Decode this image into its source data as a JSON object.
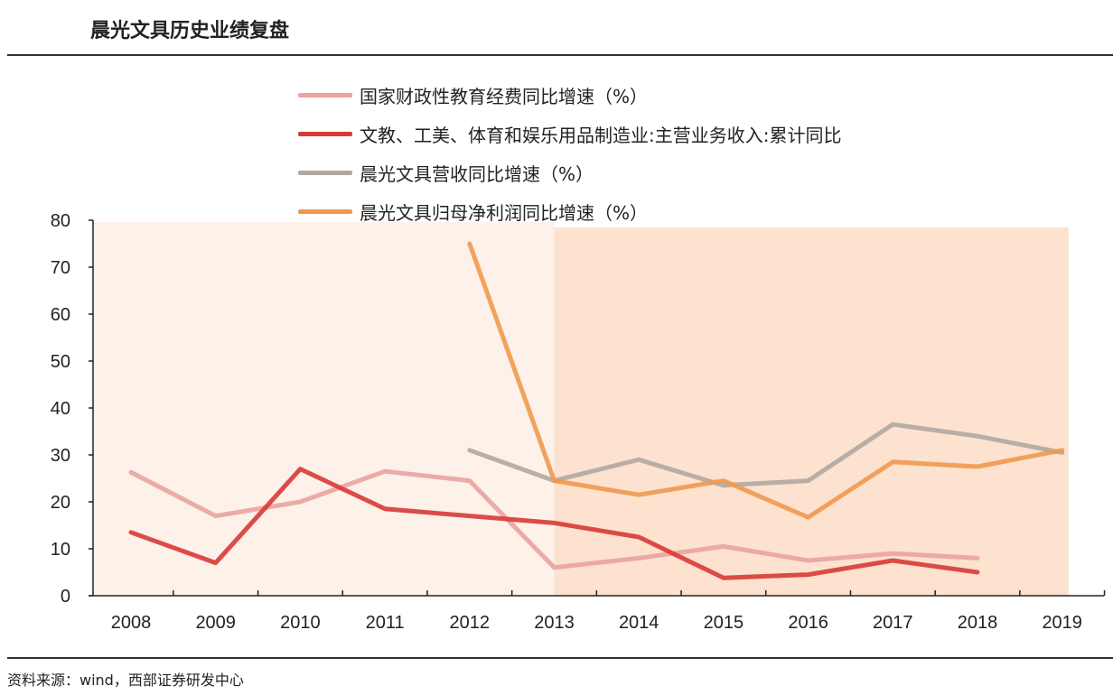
{
  "header": {
    "title": "晨光文具历史业绩复盘"
  },
  "footer": {
    "source": "资料来源：wind，西部证券研发中心"
  },
  "chart_data": {
    "type": "line",
    "title": "",
    "xlabel": "",
    "ylabel": "",
    "categories": [
      "2008",
      "2009",
      "2010",
      "2011",
      "2012",
      "2013",
      "2014",
      "2015",
      "2016",
      "2017",
      "2018",
      "2019"
    ],
    "ylim": [
      0,
      80
    ],
    "yticks": [
      "0",
      "10",
      "20",
      "30",
      "40",
      "50",
      "60",
      "70",
      "80"
    ],
    "grid": false,
    "legend_position": "top",
    "shaded_regions": [
      {
        "from": "2008",
        "to": "2013",
        "color": "#fdf1ea"
      },
      {
        "from": "2013",
        "to": "2019",
        "color": "#fce2cf"
      }
    ],
    "series": [
      {
        "name": "国家财政性教育经费同比增速（%）",
        "color": "#eaa3a0",
        "values": [
          26.3,
          17,
          20,
          26.5,
          24.5,
          6,
          8,
          10.5,
          7.5,
          9,
          8,
          null
        ]
      },
      {
        "name": "文教、工美、体育和娱乐用品制造业:主营业务收入:累计同比",
        "color": "#d83a35",
        "values": [
          13.5,
          7,
          27,
          18.5,
          17,
          15.5,
          12.5,
          3.8,
          4.5,
          7.5,
          5,
          null
        ]
      },
      {
        "name": "晨光文具营收同比增速（%）",
        "color": "#b0a8a0",
        "values": [
          null,
          null,
          null,
          null,
          31,
          24.5,
          29,
          23.5,
          24.5,
          36.5,
          34,
          30.5
        ]
      },
      {
        "name": "晨光文具归母净利润同比增速（%）",
        "color": "#f0994f",
        "values": [
          null,
          null,
          null,
          null,
          75,
          24.5,
          21.5,
          24.5,
          16.7,
          28.5,
          27.5,
          31
        ]
      }
    ]
  }
}
